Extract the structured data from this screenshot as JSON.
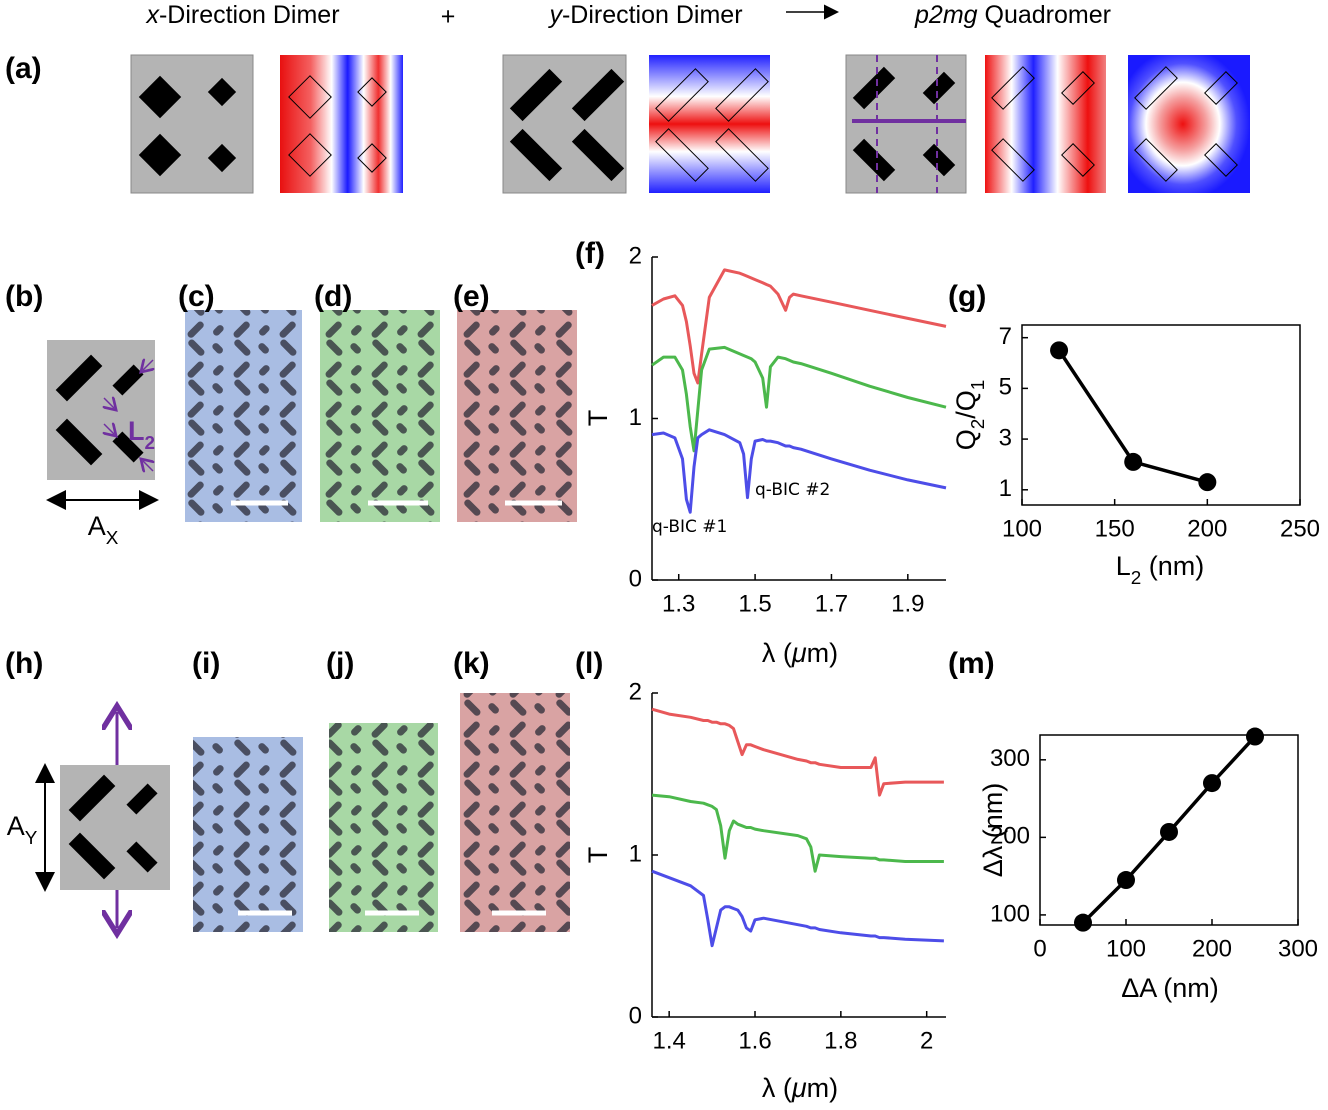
{
  "panel_labels": [
    "(a)",
    "(b)",
    "(c)",
    "(d)",
    "(e)",
    "(f)",
    "(g)",
    "(h)",
    "(i)",
    "(j)",
    "(k)",
    "(l)",
    "(m)"
  ],
  "header": {
    "x_dimer": [
      "x",
      "-Direction Dimer"
    ],
    "plus": "+",
    "y_dimer": [
      "y",
      "-Direction Dimer"
    ],
    "quadromer": [
      "p2mg",
      " Quadromer"
    ]
  },
  "schematic_b": {
    "length": [
      "L",
      "2"
    ],
    "period": [
      "A",
      "X"
    ]
  },
  "schematic_h": {
    "period": [
      "A",
      "Y"
    ]
  },
  "chart_data": [
    {
      "type": "line",
      "xlabel": [
        "λ (",
        "μ",
        "m)"
      ],
      "ylabel": "T",
      "xlim": [
        1.23,
        2.0
      ],
      "xticks": [
        1.3,
        1.5,
        1.7,
        1.9
      ],
      "ylim": [
        0,
        2
      ],
      "yticks": [
        0,
        1,
        2
      ],
      "box": false,
      "annotations": [
        "q-BIC #1",
        "q-BIC #2"
      ],
      "x": [
        1.23,
        1.26,
        1.29,
        1.31,
        1.32,
        1.33,
        1.34,
        1.35,
        1.36,
        1.38,
        1.42,
        1.46,
        1.47,
        1.48,
        1.49,
        1.5,
        1.52,
        1.53,
        1.54,
        1.56,
        1.58,
        1.59,
        1.6,
        1.62,
        1.7,
        1.8,
        1.9,
        2.0
      ],
      "series": [
        {
          "color": "#e8585a",
          "values": [
            1.7,
            1.74,
            1.76,
            1.7,
            1.6,
            1.45,
            1.28,
            1.22,
            1.4,
            1.75,
            1.92,
            1.9,
            1.89,
            1.88,
            1.87,
            1.86,
            1.84,
            1.83,
            1.82,
            1.77,
            1.67,
            1.75,
            1.77,
            1.76,
            1.72,
            1.67,
            1.62,
            1.57
          ]
        },
        {
          "color": "#4cb84c",
          "values": [
            1.33,
            1.38,
            1.38,
            1.3,
            1.15,
            0.95,
            0.8,
            1.05,
            1.3,
            1.43,
            1.44,
            1.4,
            1.39,
            1.38,
            1.37,
            1.35,
            1.25,
            1.07,
            1.32,
            1.38,
            1.37,
            1.36,
            1.35,
            1.34,
            1.28,
            1.2,
            1.13,
            1.07
          ]
        },
        {
          "color": "#4d4de8",
          "values": [
            0.9,
            0.91,
            0.88,
            0.75,
            0.5,
            0.42,
            0.7,
            0.88,
            0.9,
            0.93,
            0.9,
            0.85,
            0.78,
            0.51,
            0.75,
            0.86,
            0.87,
            0.86,
            0.86,
            0.85,
            0.83,
            0.83,
            0.82,
            0.81,
            0.75,
            0.68,
            0.62,
            0.57
          ]
        }
      ]
    },
    {
      "type": "line",
      "xlabel": [
        "L",
        "2",
        " (nm)"
      ],
      "ylabel": [
        "Q",
        "2",
        "/Q",
        "1"
      ],
      "xlim": [
        100,
        250
      ],
      "xticks": [
        100,
        150,
        200,
        250
      ],
      "ylim": [
        0.4,
        7.5
      ],
      "yticks": [
        1,
        3,
        5,
        7
      ],
      "box": true,
      "markers": true,
      "x": [
        120,
        160,
        200
      ],
      "series": [
        {
          "color": "#000000",
          "values": [
            6.5,
            2.1,
            1.3
          ]
        }
      ]
    },
    {
      "type": "line",
      "xlabel": [
        "λ (",
        "μ",
        "m)"
      ],
      "ylabel": "T",
      "xlim": [
        1.36,
        2.045
      ],
      "xticks": [
        1.4,
        1.6,
        1.8,
        2
      ],
      "ylim": [
        0,
        2
      ],
      "yticks": [
        0,
        1,
        2
      ],
      "box": false,
      "x": [
        1.36,
        1.4,
        1.45,
        1.48,
        1.49,
        1.5,
        1.51,
        1.52,
        1.53,
        1.54,
        1.55,
        1.56,
        1.57,
        1.58,
        1.59,
        1.6,
        1.62,
        1.7,
        1.72,
        1.73,
        1.74,
        1.75,
        1.8,
        1.87,
        1.88,
        1.89,
        1.9,
        1.95,
        2.04
      ],
      "series": [
        {
          "color": "#e8585a",
          "values": [
            1.9,
            1.87,
            1.85,
            1.83,
            1.83,
            1.82,
            1.82,
            1.81,
            1.81,
            1.8,
            1.78,
            1.7,
            1.62,
            1.68,
            1.68,
            1.67,
            1.65,
            1.59,
            1.58,
            1.57,
            1.57,
            1.56,
            1.54,
            1.54,
            1.6,
            1.37,
            1.44,
            1.45,
            1.45
          ]
        },
        {
          "color": "#4cb84c",
          "values": [
            1.37,
            1.36,
            1.33,
            1.32,
            1.31,
            1.3,
            1.28,
            1.18,
            0.98,
            1.15,
            1.21,
            1.19,
            1.18,
            1.17,
            1.17,
            1.16,
            1.15,
            1.12,
            1.1,
            1.05,
            0.9,
            1.0,
            0.99,
            0.98,
            0.98,
            0.97,
            0.97,
            0.96,
            0.96
          ]
        },
        {
          "color": "#4d4de8",
          "values": [
            0.9,
            0.86,
            0.81,
            0.75,
            0.6,
            0.44,
            0.55,
            0.66,
            0.68,
            0.68,
            0.67,
            0.66,
            0.62,
            0.55,
            0.53,
            0.6,
            0.61,
            0.57,
            0.56,
            0.55,
            0.55,
            0.54,
            0.52,
            0.5,
            0.5,
            0.49,
            0.49,
            0.48,
            0.47
          ]
        }
      ]
    },
    {
      "type": "line",
      "xlabel": "ΔA (nm)",
      "ylabel": "Δλ (nm)",
      "xlim": [
        0,
        300
      ],
      "xticks": [
        0,
        100,
        200,
        300
      ],
      "ylim": [
        87,
        332
      ],
      "yticks": [
        100,
        200,
        300
      ],
      "box": true,
      "markers": true,
      "x": [
        50,
        100,
        150,
        200,
        250
      ],
      "series": [
        {
          "color": "#000000",
          "values": [
            90,
            145,
            207,
            270,
            330
          ]
        }
      ]
    }
  ]
}
